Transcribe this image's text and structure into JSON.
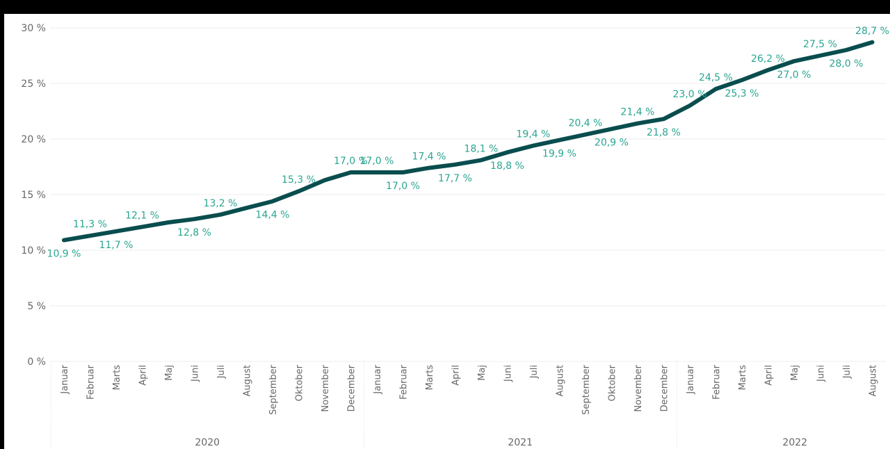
{
  "chart_data": {
    "type": "line",
    "title": "",
    "xlabel": "",
    "ylabel": "",
    "ylim": [
      0,
      30
    ],
    "y_ticks": [
      "0 %",
      "5 %",
      "10 %",
      "15 %",
      "20 %",
      "25 %",
      "30 %"
    ],
    "grid": true,
    "categories": [
      "Januar",
      "Februar",
      "Marts",
      "April",
      "Maj",
      "Juni",
      "Juli",
      "August",
      "September",
      "Oktober",
      "November",
      "December",
      "Januar",
      "Februar",
      "Marts",
      "April",
      "Maj",
      "Juni",
      "Juli",
      "August",
      "September",
      "Oktober",
      "November",
      "December",
      "Januar",
      "Februar",
      "Marts",
      "April",
      "Maj",
      "Juni",
      "Juli",
      "August"
    ],
    "years": [
      "2020",
      "2021",
      "2022"
    ],
    "series": [
      {
        "color": "#0a4d4e",
        "values": [
          10.9,
          11.3,
          11.7,
          12.1,
          12.5,
          12.8,
          13.2,
          13.8,
          14.4,
          15.3,
          16.3,
          17.0,
          17.0,
          17.0,
          17.4,
          17.7,
          18.1,
          18.8,
          19.4,
          19.9,
          20.4,
          20.9,
          21.4,
          21.8,
          23.0,
          24.5,
          25.3,
          26.2,
          27.0,
          27.5,
          28.0,
          28.7
        ],
        "data_labels": [
          "10,9 %",
          "11,3 %",
          "11,7 %",
          "12,1 %",
          "",
          "12,8 %",
          "13,2 %",
          "",
          "14,4 %",
          "15,3 %",
          "",
          "17,0 %",
          "17,0 %",
          "17,0 %",
          "17,4 %",
          "17,7 %",
          "18,1 %",
          "18,8 %",
          "19,4 %",
          "19,9 %",
          "20,4 %",
          "20,9 %",
          "21,4 %",
          "21,8 %",
          "23,0 %",
          "24,5 %",
          "25,3 %",
          "26,2 %",
          "27,0 %",
          "27,5 %",
          "28,0 %",
          "28,7 %"
        ],
        "label_color": "#2aa592"
      }
    ]
  }
}
